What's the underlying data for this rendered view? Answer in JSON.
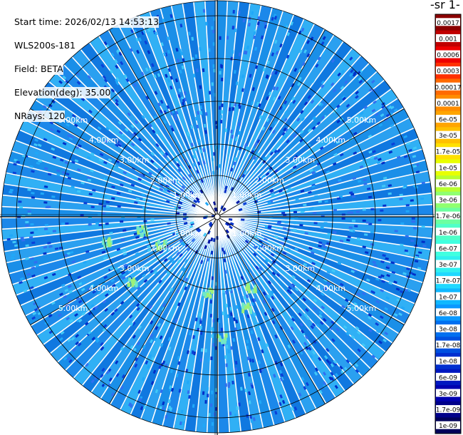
{
  "header": {
    "start_time": "Start time: 2026/02/13 14:53:13",
    "instrument": "WLS200s-181",
    "field": "Field: BETA",
    "elevation": "Elevation(deg): 35.00",
    "nrays": "NRays: 120"
  },
  "colorbar": {
    "units_label": "-1 sr-",
    "ticks": [
      "0.0017",
      "0.001",
      "0.0006",
      "0.0003",
      "0.00017",
      "0.0001",
      "6e-05",
      "3e-05",
      "1.7e-05",
      "1e-05",
      "6e-06",
      "3e-06",
      "1.7e-06",
      "1e-06",
      "6e-07",
      "3e-07",
      "1.7e-07",
      "1e-07",
      "6e-08",
      "3e-08",
      "1.7e-08",
      "1e-08",
      "6e-09",
      "3e-09",
      "1.7e-09",
      "1e-09"
    ],
    "colors": [
      "#8b0000",
      "#c00000",
      "#ee0000",
      "#ff3000",
      "#ff6a00",
      "#ff8c00",
      "#ffa500",
      "#ffc000",
      "#ffe000",
      "#e8ff00",
      "#b8ff30",
      "#90ff70",
      "#6cffa0",
      "#50ffc8",
      "#40ffe0",
      "#30f0f0",
      "#20d8ff",
      "#10b8ff",
      "#0a98ff",
      "#0070f0",
      "#0050e0",
      "#0030d0",
      "#0018c0",
      "#0000b0",
      "#00008a",
      "#00005a"
    ]
  },
  "chart_data": {
    "type": "polar",
    "title": "",
    "field": "BETA",
    "nrays": 120,
    "elevation_deg": 35.0,
    "range_rings_km": [
      1.0,
      2.0,
      3.0,
      4.0,
      5.0
    ],
    "ring_labels": [
      "1.00km",
      "2.00km",
      "3.00km",
      "4.00km",
      "5.00km"
    ],
    "max_range_km": 7.2,
    "dominant_value": "3e-08",
    "value_range": [
      "1e-09",
      "1.7e-07"
    ]
  }
}
